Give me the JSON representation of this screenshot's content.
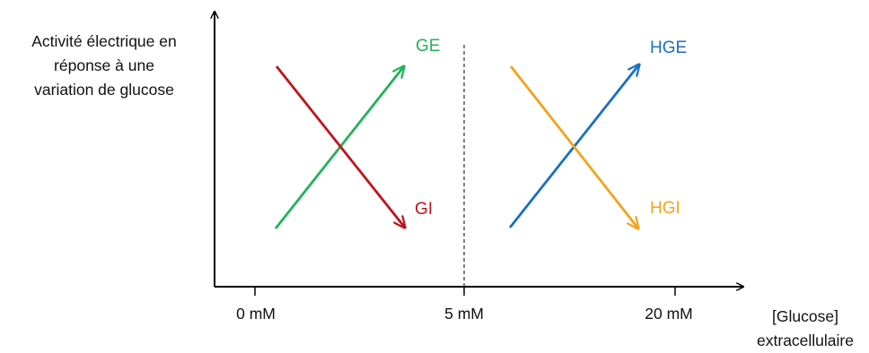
{
  "y_axis_label": [
    "Activité électrique en",
    "réponse à une",
    "variation de glucose"
  ],
  "x_axis_label": [
    "[Glucose]",
    "extracellulaire"
  ],
  "ticks": [
    "0 mM",
    "5 mM",
    "20 mM"
  ],
  "series": [
    {
      "id": "GE",
      "label": "GE",
      "color": "#22b35a"
    },
    {
      "id": "GI",
      "label": "GI",
      "color": "#c0141c"
    },
    {
      "id": "HGE",
      "label": "HGE",
      "color": "#1a6fc0"
    },
    {
      "id": "HGI",
      "label": "HGI",
      "color": "#f2a31b"
    }
  ]
}
